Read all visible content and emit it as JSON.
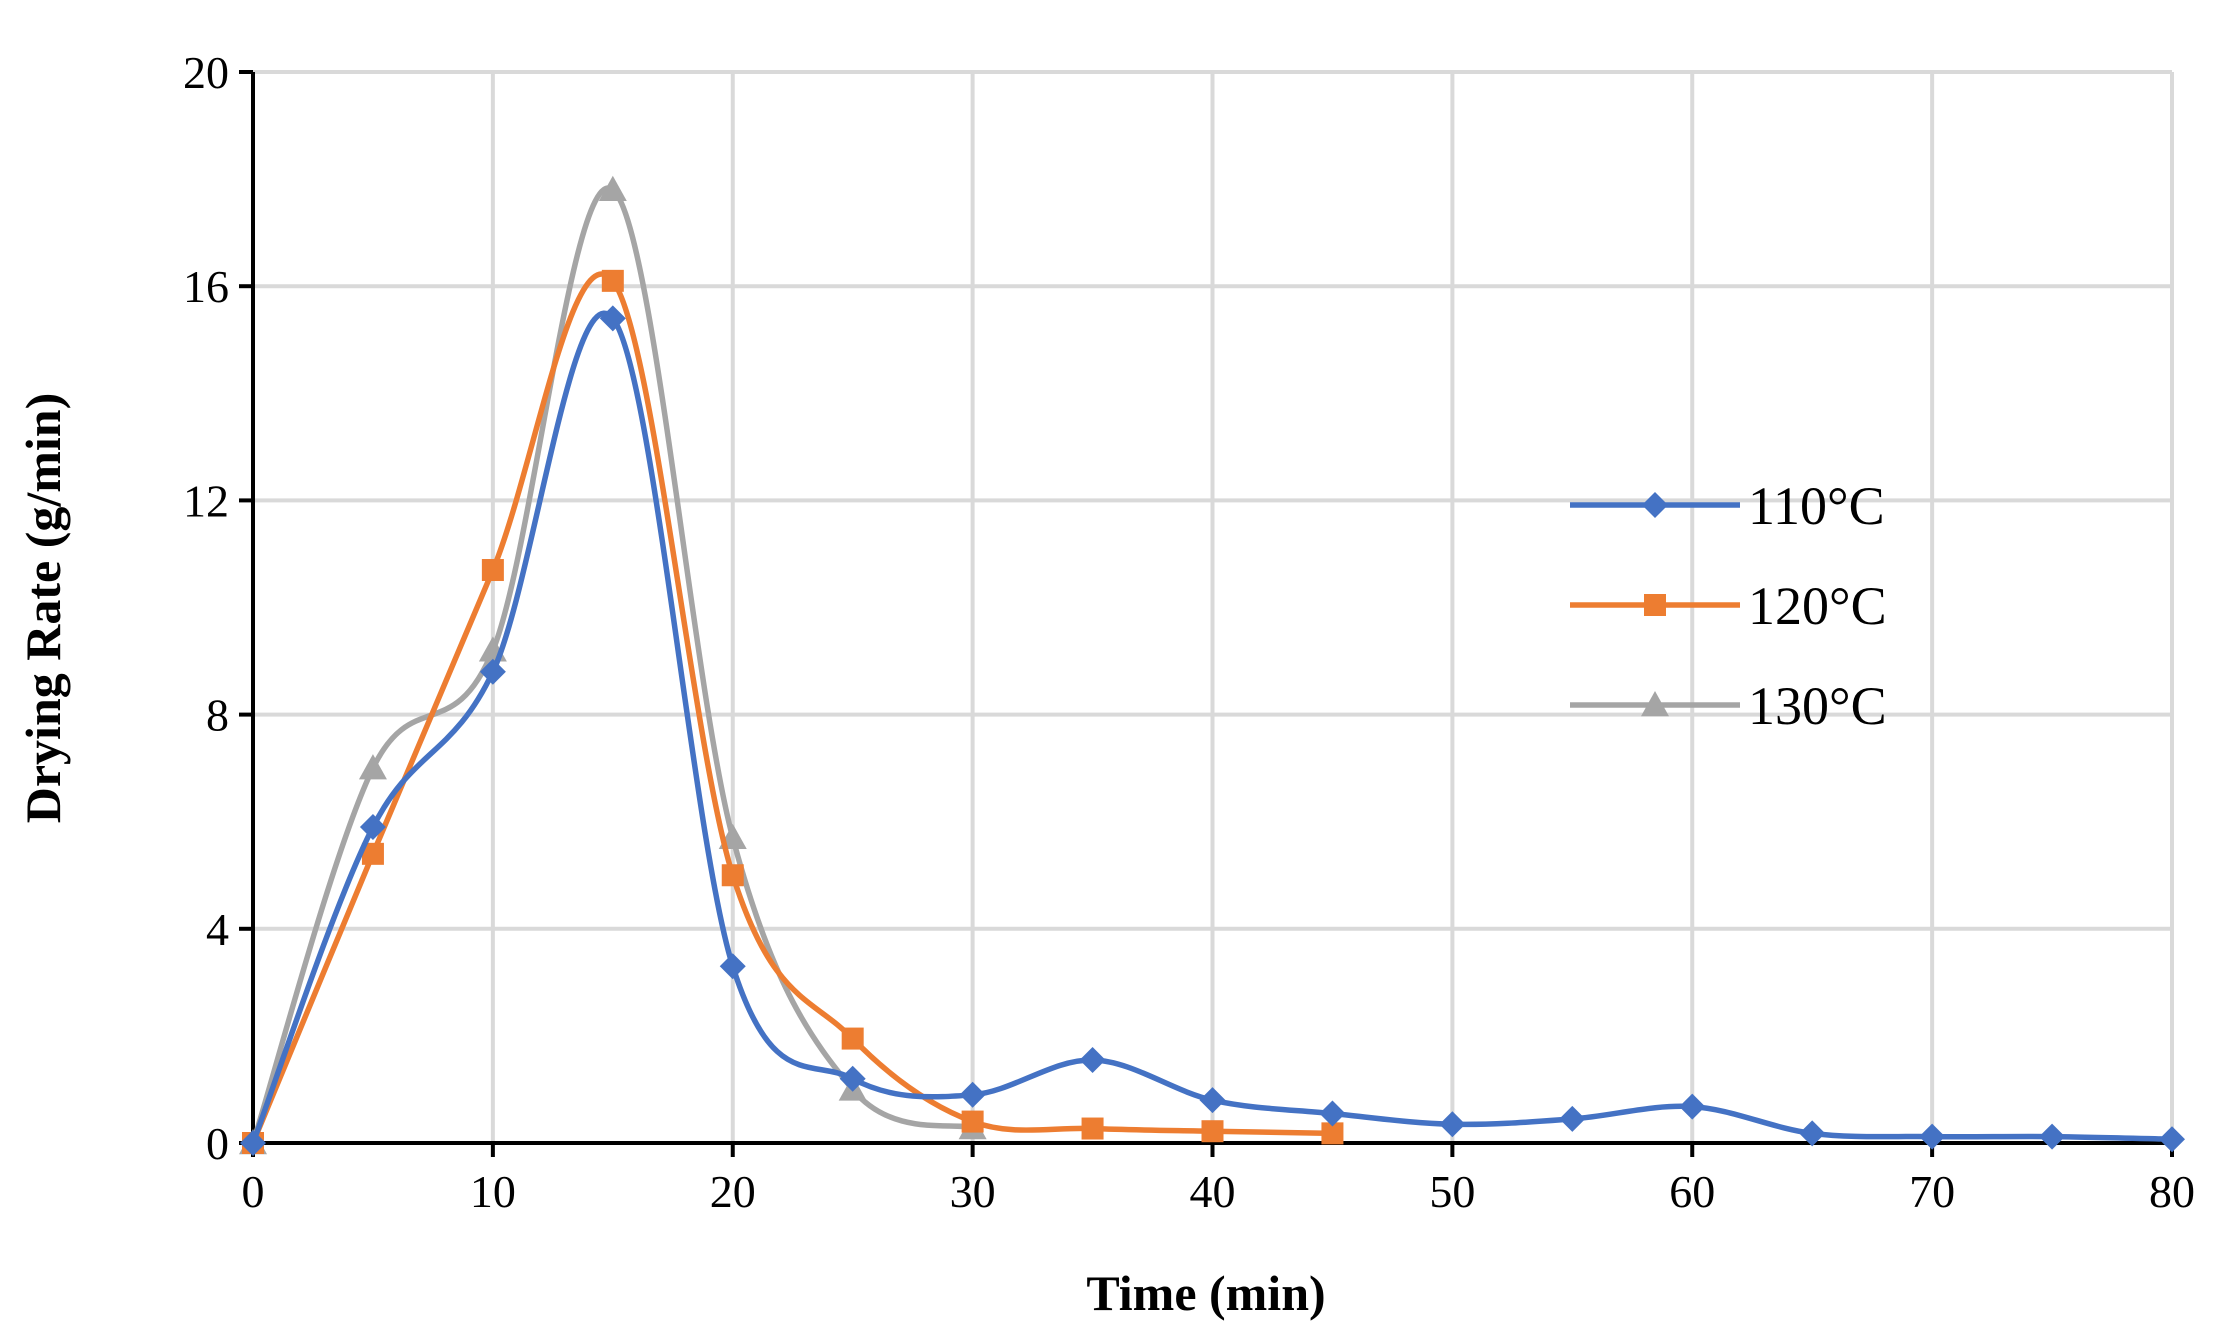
{
  "chart_data": {
    "type": "line",
    "title": "",
    "xlabel": "Time (min)",
    "ylabel": "Drying Rate (g/min)",
    "xlim": [
      0,
      80
    ],
    "ylim": [
      0,
      20
    ],
    "xticks": [
      0,
      10,
      20,
      30,
      40,
      50,
      60,
      70,
      80
    ],
    "yticks": [
      0,
      4,
      8,
      12,
      16,
      20
    ],
    "grid": true,
    "legend_position": "right",
    "series": [
      {
        "name": "110°C",
        "color": "#4472C4",
        "marker": "diamond",
        "x": [
          0,
          5,
          10,
          15,
          20,
          25,
          30,
          35,
          40,
          45,
          50,
          55,
          60,
          65,
          70,
          75,
          80
        ],
        "y": [
          0,
          5.9,
          8.8,
          15.4,
          3.3,
          1.2,
          0.9,
          1.55,
          0.8,
          0.55,
          0.35,
          0.45,
          0.68,
          0.18,
          0.12,
          0.12,
          0.07
        ]
      },
      {
        "name": "120°C",
        "color": "#ED7D31",
        "marker": "square",
        "x": [
          0,
          5,
          10,
          15,
          20,
          25,
          30,
          35,
          40,
          45
        ],
        "y": [
          0,
          5.4,
          10.7,
          16.1,
          5.0,
          1.95,
          0.4,
          0.27,
          0.22,
          0.18
        ]
      },
      {
        "name": "130°C",
        "color": "#A5A5A5",
        "marker": "triangle",
        "x": [
          0,
          5,
          10,
          15,
          20,
          25,
          30
        ],
        "y": [
          0,
          7.0,
          9.2,
          17.8,
          5.7,
          1.0,
          0.28
        ]
      }
    ]
  }
}
